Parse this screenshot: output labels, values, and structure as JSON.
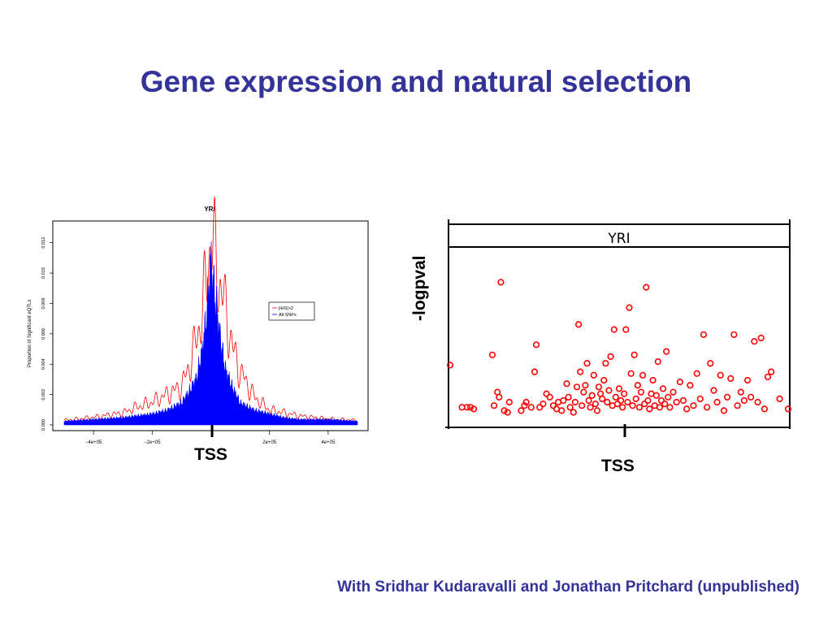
{
  "slide": {
    "title": "Gene expression and natural selection",
    "credit": "With Sridhar Kudaravalli and Jonathan Pritchard (unpublished)"
  },
  "chart_data": [
    {
      "type": "line",
      "title": "YRI",
      "xlabel": "",
      "ylabel": "Proportion of Significant eQTLs",
      "xlim": [
        -500000,
        500000
      ],
      "ylim": [
        0,
        0.013
      ],
      "x_ticks": [
        -400000,
        -200000,
        200000,
        400000
      ],
      "x_tick_labels": [
        "−4e+05",
        "−2e+05",
        "2e+05",
        "4e+05"
      ],
      "y_ticks": [
        0,
        0.002,
        0.004,
        0.006,
        0.008,
        0.01,
        0.012
      ],
      "y_tick_labels": [
        "0.000",
        "0.002",
        "0.004",
        "0.006",
        "0.008",
        "0.010",
        "0.012"
      ],
      "legend_position": "right",
      "annotation": "TSS",
      "grid": false,
      "series": [
        {
          "name": "|iHS|>2",
          "color": "#ff0000",
          "x": [
            -500000,
            -400000,
            -300000,
            -250000,
            -200000,
            -150000,
            -100000,
            -75000,
            -50000,
            -30000,
            -15000,
            0,
            15000,
            30000,
            50000,
            75000,
            100000,
            150000,
            200000,
            250000,
            300000,
            400000,
            500000
          ],
          "y": [
            0.0003,
            0.0005,
            0.0008,
            0.0012,
            0.0015,
            0.002,
            0.0025,
            0.0038,
            0.0055,
            0.0075,
            0.0095,
            0.0125,
            0.011,
            0.0095,
            0.0075,
            0.005,
            0.0035,
            0.0018,
            0.001,
            0.0008,
            0.0006,
            0.0004,
            0.0003
          ]
        },
        {
          "name": "All SNPs",
          "color": "#0000ff",
          "x": [
            -500000,
            -400000,
            -300000,
            -250000,
            -200000,
            -150000,
            -100000,
            -75000,
            -50000,
            -30000,
            -15000,
            0,
            15000,
            30000,
            50000,
            75000,
            100000,
            150000,
            200000,
            250000,
            300000,
            400000,
            500000
          ],
          "y": [
            0.0002,
            0.0003,
            0.0004,
            0.0005,
            0.0006,
            0.0008,
            0.0012,
            0.0018,
            0.0025,
            0.004,
            0.006,
            0.009,
            0.007,
            0.005,
            0.003,
            0.002,
            0.0012,
            0.0008,
            0.0006,
            0.0004,
            0.0003,
            0.0003,
            0.0002
          ]
        }
      ]
    },
    {
      "type": "scatter",
      "title": "YRI",
      "xlabel": "",
      "ylabel": "-logpval",
      "annotation": "TSS",
      "xlim": [
        -1,
        1
      ],
      "ylim": [
        0,
        1
      ],
      "marker_color": "#ff0000",
      "points": [
        [
          -1.0,
          0.34
        ],
        [
          -0.93,
          0.09
        ],
        [
          -0.9,
          0.09
        ],
        [
          -0.88,
          0.09
        ],
        [
          -0.86,
          0.08
        ],
        [
          -0.75,
          0.4
        ],
        [
          -0.74,
          0.1
        ],
        [
          -0.72,
          0.18
        ],
        [
          -0.71,
          0.15
        ],
        [
          -0.7,
          0.83
        ],
        [
          -0.68,
          0.07
        ],
        [
          -0.66,
          0.06
        ],
        [
          -0.65,
          0.12
        ],
        [
          -0.58,
          0.07
        ],
        [
          -0.56,
          0.1
        ],
        [
          -0.55,
          0.12
        ],
        [
          -0.52,
          0.09
        ],
        [
          -0.5,
          0.3
        ],
        [
          -0.49,
          0.46
        ],
        [
          -0.47,
          0.09
        ],
        [
          -0.45,
          0.11
        ],
        [
          -0.43,
          0.17
        ],
        [
          -0.41,
          0.15
        ],
        [
          -0.39,
          0.1
        ],
        [
          -0.37,
          0.08
        ],
        [
          -0.36,
          0.12
        ],
        [
          -0.34,
          0.07
        ],
        [
          -0.33,
          0.13
        ],
        [
          -0.31,
          0.23
        ],
        [
          -0.3,
          0.15
        ],
        [
          -0.29,
          0.09
        ],
        [
          -0.27,
          0.06
        ],
        [
          -0.26,
          0.12
        ],
        [
          -0.25,
          0.21
        ],
        [
          -0.24,
          0.58
        ],
        [
          -0.23,
          0.3
        ],
        [
          -0.22,
          0.1
        ],
        [
          -0.21,
          0.18
        ],
        [
          -0.2,
          0.22
        ],
        [
          -0.19,
          0.35
        ],
        [
          -0.18,
          0.13
        ],
        [
          -0.17,
          0.09
        ],
        [
          -0.16,
          0.16
        ],
        [
          -0.15,
          0.28
        ],
        [
          -0.14,
          0.11
        ],
        [
          -0.13,
          0.07
        ],
        [
          -0.12,
          0.21
        ],
        [
          -0.11,
          0.17
        ],
        [
          -0.1,
          0.14
        ],
        [
          -0.09,
          0.25
        ],
        [
          -0.08,
          0.35
        ],
        [
          -0.07,
          0.12
        ],
        [
          -0.06,
          0.19
        ],
        [
          -0.05,
          0.39
        ],
        [
          -0.04,
          0.1
        ],
        [
          -0.03,
          0.55
        ],
        [
          -0.02,
          0.15
        ],
        [
          -0.01,
          0.11
        ],
        [
          0.0,
          0.2
        ],
        [
          0.01,
          0.13
        ],
        [
          0.02,
          0.09
        ],
        [
          0.03,
          0.17
        ],
        [
          0.04,
          0.55
        ],
        [
          0.05,
          0.12
        ],
        [
          0.06,
          0.68
        ],
        [
          0.07,
          0.29
        ],
        [
          0.08,
          0.1
        ],
        [
          0.09,
          0.4
        ],
        [
          0.1,
          0.14
        ],
        [
          0.11,
          0.22
        ],
        [
          0.12,
          0.09
        ],
        [
          0.13,
          0.18
        ],
        [
          0.14,
          0.28
        ],
        [
          0.15,
          0.11
        ],
        [
          0.16,
          0.8
        ],
        [
          0.17,
          0.13
        ],
        [
          0.18,
          0.08
        ],
        [
          0.19,
          0.17
        ],
        [
          0.2,
          0.25
        ],
        [
          0.21,
          0.1
        ],
        [
          0.22,
          0.16
        ],
        [
          0.23,
          0.36
        ],
        [
          0.24,
          0.09
        ],
        [
          0.25,
          0.13
        ],
        [
          0.26,
          0.2
        ],
        [
          0.27,
          0.11
        ],
        [
          0.28,
          0.42
        ],
        [
          0.29,
          0.15
        ],
        [
          0.3,
          0.09
        ],
        [
          0.32,
          0.18
        ],
        [
          0.34,
          0.12
        ],
        [
          0.36,
          0.24
        ],
        [
          0.38,
          0.13
        ],
        [
          0.4,
          0.08
        ],
        [
          0.42,
          0.22
        ],
        [
          0.44,
          0.1
        ],
        [
          0.46,
          0.29
        ],
        [
          0.48,
          0.14
        ],
        [
          0.5,
          0.52
        ],
        [
          0.52,
          0.09
        ],
        [
          0.54,
          0.35
        ],
        [
          0.56,
          0.19
        ],
        [
          0.58,
          0.12
        ],
        [
          0.6,
          0.28
        ],
        [
          0.62,
          0.07
        ],
        [
          0.64,
          0.15
        ],
        [
          0.66,
          0.26
        ],
        [
          0.68,
          0.52
        ],
        [
          0.7,
          0.1
        ],
        [
          0.72,
          0.18
        ],
        [
          0.74,
          0.13
        ],
        [
          0.76,
          0.25
        ],
        [
          0.78,
          0.15
        ],
        [
          0.8,
          0.48
        ],
        [
          0.82,
          0.12
        ],
        [
          0.84,
          0.5
        ],
        [
          0.86,
          0.08
        ],
        [
          0.88,
          0.27
        ],
        [
          0.9,
          0.3
        ],
        [
          0.95,
          0.14
        ],
        [
          1.0,
          0.08
        ]
      ]
    }
  ]
}
